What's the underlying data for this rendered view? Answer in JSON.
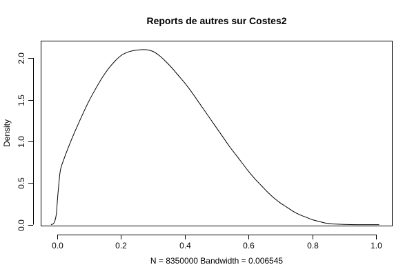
{
  "chart_data": {
    "type": "line",
    "title": "Reports de autres sur Costes2",
    "xlabel": "N = 8350000   Bandwidth = 0.006545",
    "ylabel": "Density",
    "xlim": [
      -0.05,
      1.05
    ],
    "ylim": [
      -0.02,
      2.2
    ],
    "grid": false,
    "legend": "none",
    "x_ticks": [
      0.0,
      0.2,
      0.4,
      0.6,
      0.8,
      1.0
    ],
    "x_tick_labels": [
      "0.0",
      "0.2",
      "0.4",
      "0.6",
      "0.8",
      "1.0"
    ],
    "y_ticks": [
      0.0,
      0.5,
      1.0,
      1.5,
      2.0
    ],
    "y_tick_labels": [
      "0.0",
      "0.5",
      "1.0",
      "1.5",
      "2.0"
    ],
    "series": [
      {
        "x": [
          -0.02,
          -0.013,
          -0.008,
          -0.003,
          0.0,
          0.005,
          0.01,
          0.02,
          0.04,
          0.06,
          0.08,
          0.1,
          0.12,
          0.14,
          0.16,
          0.18,
          0.2,
          0.22,
          0.24,
          0.26,
          0.28,
          0.3,
          0.32,
          0.34,
          0.36,
          0.38,
          0.4,
          0.42,
          0.44,
          0.46,
          0.48,
          0.5,
          0.52,
          0.54,
          0.56,
          0.58,
          0.6,
          0.62,
          0.64,
          0.66,
          0.68,
          0.7,
          0.72,
          0.74,
          0.76,
          0.78,
          0.8,
          0.82,
          0.84,
          0.86,
          0.88,
          0.9,
          0.92,
          0.94,
          0.96,
          0.98,
          1.0,
          1.01
        ],
        "y": [
          0.0,
          0.01,
          0.04,
          0.13,
          0.28,
          0.5,
          0.66,
          0.78,
          0.98,
          1.16,
          1.33,
          1.49,
          1.63,
          1.76,
          1.87,
          1.96,
          2.03,
          2.07,
          2.09,
          2.1,
          2.1,
          2.08,
          2.03,
          1.96,
          1.88,
          1.79,
          1.7,
          1.6,
          1.49,
          1.38,
          1.27,
          1.16,
          1.05,
          0.94,
          0.84,
          0.74,
          0.64,
          0.55,
          0.47,
          0.39,
          0.32,
          0.26,
          0.21,
          0.16,
          0.12,
          0.09,
          0.06,
          0.04,
          0.02,
          0.01,
          0.006,
          0.003,
          0.001,
          0.0,
          0.0,
          0.0,
          0.0,
          0.0
        ]
      }
    ]
  }
}
